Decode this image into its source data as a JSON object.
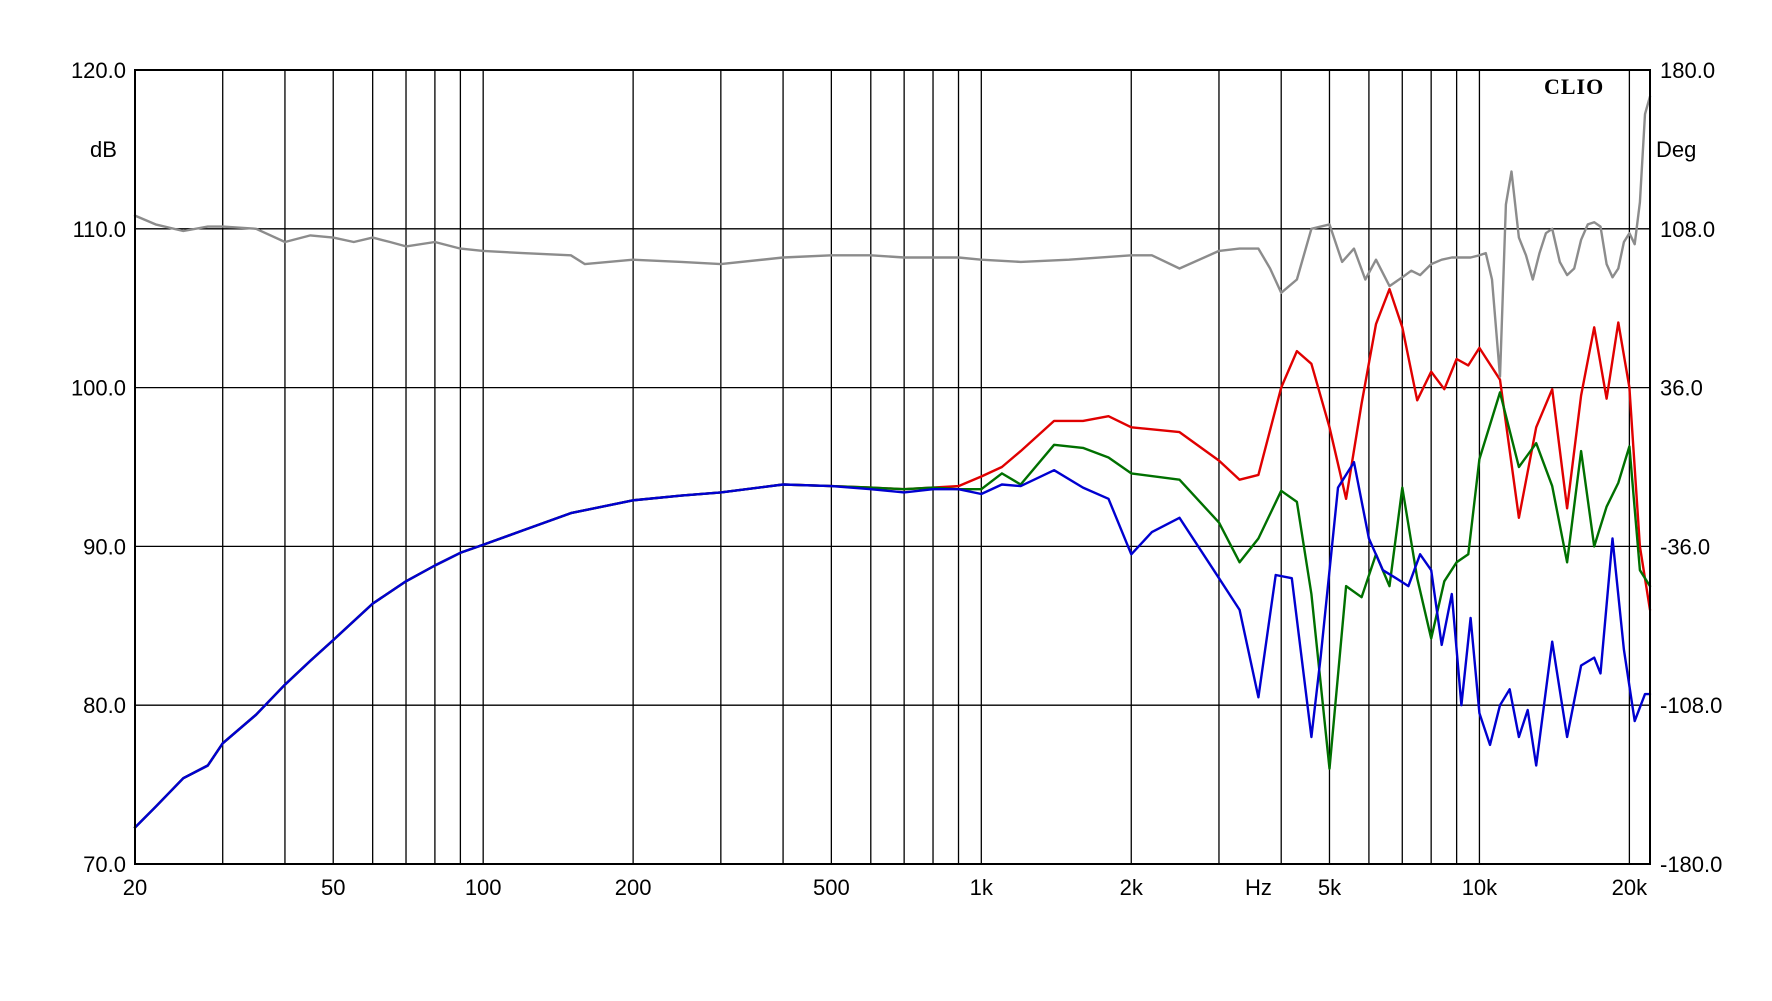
{
  "chart_data": {
    "type": "line",
    "brand": "CLIO",
    "xlabel": "Hz",
    "ylabel_left": "dB",
    "ylabel_right": "Deg",
    "x_scale": "log",
    "xlim": [
      20,
      22000
    ],
    "ylim_left": [
      70,
      120
    ],
    "ylim_right": [
      -180,
      180
    ],
    "grid": true,
    "x_tick_labels": [
      {
        "value": 20,
        "label": "20"
      },
      {
        "value": 50,
        "label": "50"
      },
      {
        "value": 100,
        "label": "100"
      },
      {
        "value": 200,
        "label": "200"
      },
      {
        "value": 500,
        "label": "500"
      },
      {
        "value": 1000,
        "label": "1k"
      },
      {
        "value": 2000,
        "label": "2k"
      },
      {
        "value": 5000,
        "label": "5k"
      },
      {
        "value": 10000,
        "label": "10k"
      },
      {
        "value": 20000,
        "label": "20k"
      }
    ],
    "x_grid_values": [
      30,
      40,
      50,
      60,
      70,
      80,
      90,
      100,
      200,
      300,
      400,
      500,
      600,
      700,
      800,
      900,
      1000,
      2000,
      3000,
      4000,
      5000,
      6000,
      7000,
      8000,
      9000,
      10000,
      20000
    ],
    "y_left_ticks": [
      {
        "value": 70,
        "label": "70.0"
      },
      {
        "value": 80,
        "label": "80.0"
      },
      {
        "value": 90,
        "label": "90.0"
      },
      {
        "value": 100,
        "label": "100.0"
      },
      {
        "value": 110,
        "label": "110.0"
      },
      {
        "value": 120,
        "label": "120.0"
      }
    ],
    "y_right_ticks": [
      {
        "value": -180,
        "label": "-180.0"
      },
      {
        "value": -108,
        "label": "-108.0"
      },
      {
        "value": -36,
        "label": "-36.0"
      },
      {
        "value": 36,
        "label": "36.0"
      },
      {
        "value": 108,
        "label": "108.0"
      },
      {
        "value": 180,
        "label": "180.0"
      }
    ],
    "series": [
      {
        "color": "#e00000",
        "axis": "left",
        "x": [
          20,
          22,
          25,
          28,
          30,
          35,
          40,
          45,
          50,
          60,
          70,
          80,
          90,
          100,
          120,
          150,
          200,
          250,
          300,
          400,
          500,
          600,
          700,
          800,
          900,
          1000,
          1100,
          1200,
          1400,
          1600,
          1800,
          2000,
          2500,
          3000,
          3300,
          3600,
          4000,
          4300,
          4600,
          5000,
          5400,
          5800,
          6200,
          6600,
          7000,
          7500,
          8000,
          8500,
          9000,
          9500,
          10000,
          11000,
          12000,
          13000,
          14000,
          15000,
          16000,
          17000,
          18000,
          19000,
          20000,
          21000,
          22000
        ],
        "y": [
          72.3,
          73.6,
          75.4,
          76.2,
          77.6,
          79.4,
          81.3,
          82.8,
          84.1,
          86.4,
          87.8,
          88.8,
          89.6,
          90.1,
          91.0,
          92.1,
          92.9,
          93.2,
          93.4,
          93.9,
          93.8,
          93.7,
          93.6,
          93.7,
          93.8,
          94.4,
          95.0,
          96.0,
          97.9,
          97.9,
          98.2,
          97.5,
          97.2,
          95.4,
          94.2,
          94.5,
          100.0,
          102.3,
          101.5,
          97.5,
          93.0,
          99.0,
          104.0,
          106.2,
          103.8,
          99.2,
          101.0,
          99.9,
          101.8,
          101.4,
          102.5,
          100.5,
          91.8,
          97.5,
          99.9,
          92.4,
          99.5,
          103.8,
          99.3,
          104.1,
          100.0,
          90.0,
          86.0
        ]
      },
      {
        "color": "#007000",
        "axis": "left",
        "x": [
          20,
          22,
          25,
          28,
          30,
          35,
          40,
          45,
          50,
          60,
          70,
          80,
          90,
          100,
          120,
          150,
          200,
          250,
          300,
          400,
          500,
          600,
          700,
          800,
          900,
          1000,
          1100,
          1200,
          1400,
          1600,
          1800,
          2000,
          2500,
          3000,
          3300,
          3600,
          4000,
          4300,
          4600,
          5000,
          5400,
          5800,
          6200,
          6600,
          7000,
          7500,
          8000,
          8500,
          9000,
          9500,
          10000,
          11000,
          12000,
          13000,
          14000,
          15000,
          16000,
          17000,
          18000,
          19000,
          20000,
          21000,
          22000
        ],
        "y": [
          72.3,
          73.6,
          75.4,
          76.2,
          77.6,
          79.4,
          81.3,
          82.8,
          84.1,
          86.4,
          87.8,
          88.8,
          89.6,
          90.1,
          91.0,
          92.1,
          92.9,
          93.2,
          93.4,
          93.9,
          93.8,
          93.7,
          93.6,
          93.7,
          93.6,
          93.6,
          94.6,
          93.9,
          96.4,
          96.2,
          95.6,
          94.6,
          94.2,
          91.5,
          89.0,
          90.5,
          93.5,
          92.8,
          87.0,
          76.0,
          87.5,
          86.8,
          89.5,
          87.5,
          93.7,
          88.0,
          84.2,
          87.8,
          89.0,
          89.5,
          95.5,
          99.7,
          95.0,
          96.5,
          93.8,
          89.0,
          96.0,
          90.0,
          92.5,
          94.0,
          96.3,
          88.5,
          87.5
        ]
      },
      {
        "color": "#0000d0",
        "axis": "left",
        "x": [
          20,
          22,
          25,
          28,
          30,
          35,
          40,
          45,
          50,
          60,
          70,
          80,
          90,
          100,
          120,
          150,
          200,
          250,
          300,
          400,
          500,
          600,
          700,
          800,
          900,
          1000,
          1100,
          1200,
          1400,
          1600,
          1800,
          2000,
          2200,
          2500,
          3000,
          3300,
          3600,
          3900,
          4200,
          4600,
          4800,
          5200,
          5600,
          6000,
          6400,
          6800,
          7200,
          7600,
          8000,
          8400,
          8800,
          9200,
          9600,
          10000,
          10500,
          11000,
          11500,
          12000,
          12500,
          13000,
          14000,
          15000,
          16000,
          17000,
          17500,
          18500,
          19500,
          20500,
          21500,
          22000
        ],
        "y": [
          72.3,
          73.6,
          75.4,
          76.2,
          77.6,
          79.4,
          81.3,
          82.8,
          84.1,
          86.4,
          87.8,
          88.8,
          89.6,
          90.1,
          91.0,
          92.1,
          92.9,
          93.2,
          93.4,
          93.9,
          93.8,
          93.6,
          93.4,
          93.6,
          93.6,
          93.3,
          93.9,
          93.8,
          94.8,
          93.7,
          93.0,
          89.5,
          90.9,
          91.8,
          88.0,
          86.0,
          80.5,
          88.2,
          88.0,
          78.0,
          83.0,
          93.7,
          95.3,
          90.5,
          88.5,
          88.0,
          87.5,
          89.5,
          88.5,
          83.8,
          87.0,
          80.0,
          85.5,
          79.5,
          77.5,
          80.0,
          81.0,
          78.0,
          79.7,
          76.2,
          84.0,
          78.0,
          82.5,
          83.0,
          82.0,
          90.5,
          83.5,
          79.0,
          80.7,
          80.7
        ]
      },
      {
        "color": "#8c8c8c",
        "axis": "right",
        "x": [
          20,
          22,
          25,
          28,
          30,
          35,
          40,
          45,
          50,
          55,
          60,
          65,
          70,
          80,
          90,
          100,
          120,
          150,
          160,
          200,
          250,
          300,
          400,
          500,
          600,
          700,
          800,
          900,
          1000,
          1200,
          1500,
          2000,
          2200,
          2500,
          3000,
          3300,
          3600,
          3800,
          4000,
          4300,
          4600,
          5000,
          5300,
          5600,
          5900,
          6200,
          6600,
          7000,
          7300,
          7600,
          8000,
          8400,
          8800,
          9200,
          9600,
          10000,
          10300,
          10600,
          11000,
          11300,
          11600,
          12000,
          12400,
          12800,
          13200,
          13600,
          14000,
          14500,
          15000,
          15500,
          16000,
          16500,
          17000,
          17500,
          18000,
          18500,
          19000,
          19500,
          20000,
          20500,
          21000,
          21500,
          22000
        ],
        "y": [
          114,
          110,
          107,
          109,
          109,
          108,
          102,
          105,
          104,
          102,
          104,
          102,
          100,
          102,
          99,
          98,
          97,
          96,
          92,
          94,
          93,
          92,
          95,
          96,
          96,
          95,
          95,
          95,
          94,
          93,
          94,
          96,
          96,
          90,
          98,
          99,
          99,
          90,
          79,
          85,
          108,
          110,
          93,
          99,
          85,
          94,
          82,
          86,
          89,
          87,
          92,
          94,
          95,
          95,
          95,
          96,
          97,
          85,
          41,
          119,
          134,
          104,
          96,
          85,
          97,
          106,
          108,
          93,
          87,
          90,
          103,
          110,
          111,
          109,
          92,
          86,
          90,
          102,
          106,
          101,
          120,
          160,
          168
        ]
      }
    ]
  }
}
